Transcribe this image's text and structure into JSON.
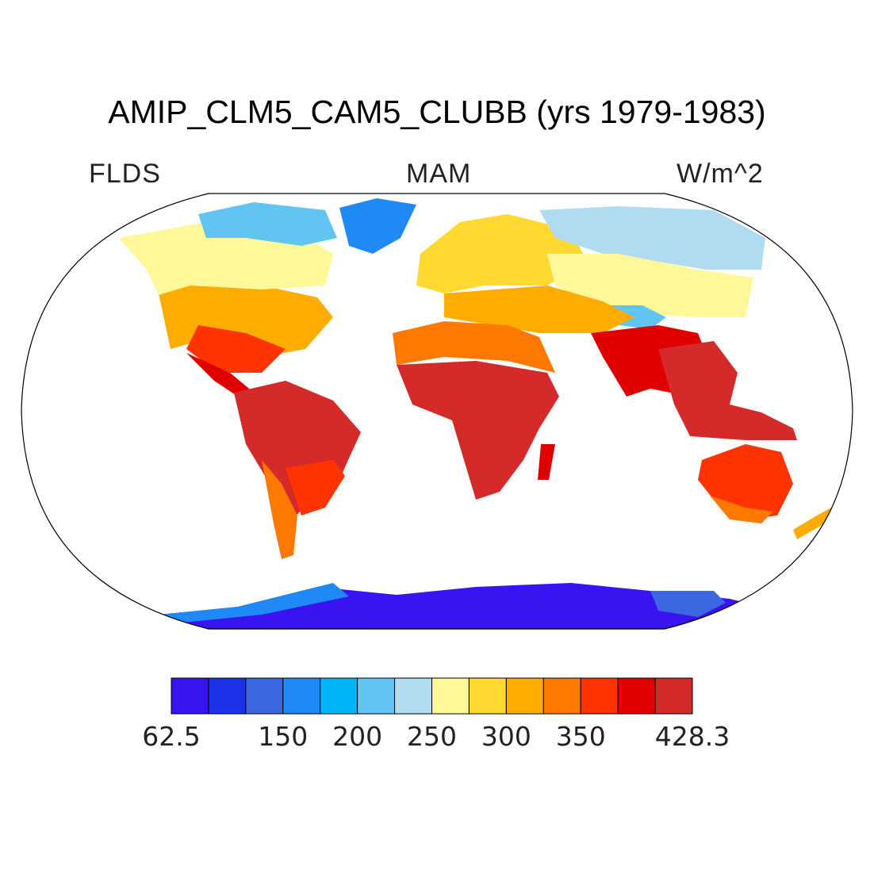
{
  "title": "AMIP_CLM5_CAM5_CLUBB (yrs 1979-1983)",
  "variable": "FLDS",
  "season": "MAM",
  "units": "W/m^2",
  "colorbar": {
    "colors": [
      "#3a14f0",
      "#1c32e8",
      "#3b68e0",
      "#1f8af5",
      "#00b4f8",
      "#62c4f2",
      "#b0dcf2",
      "#fff898",
      "#ffd830",
      "#ffac00",
      "#ff7800",
      "#ff3400",
      "#e00000",
      "#d42a2a"
    ],
    "labels": [
      {
        "text": "62.5",
        "at": 0
      },
      {
        "text": "150",
        "at": 3
      },
      {
        "text": "200",
        "at": 5
      },
      {
        "text": "250",
        "at": 7
      },
      {
        "text": "300",
        "at": 9
      },
      {
        "text": "350",
        "at": 11
      },
      {
        "text": "428.3",
        "at": 14
      }
    ]
  },
  "icons": {
    "map": "robinson-world-map-icon"
  }
}
